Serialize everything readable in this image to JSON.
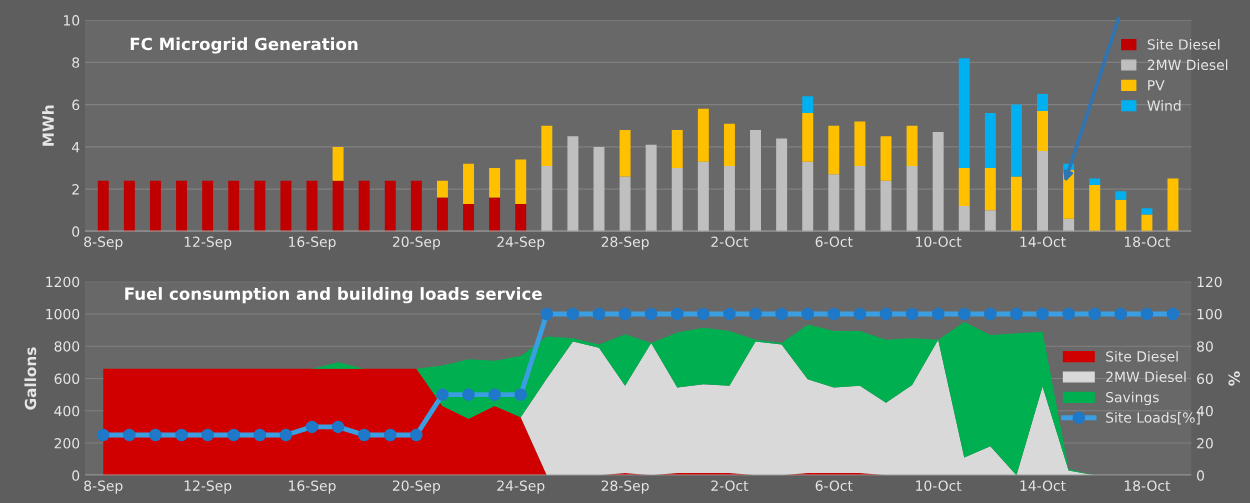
{
  "chart_data": [
    {
      "type": "bar",
      "title": "FC Microgrid Generation",
      "ylabel": "MWh",
      "stacked": true,
      "categories": [
        "8-Sep",
        null,
        null,
        null,
        "12-Sep",
        null,
        null,
        null,
        "16-Sep",
        null,
        null,
        null,
        "20-Sep",
        null,
        null,
        null,
        "24-Sep",
        null,
        null,
        null,
        "28-Sep",
        null,
        null,
        null,
        "2-Oct",
        null,
        null,
        null,
        "6-Oct",
        null,
        null,
        null,
        "10-Oct",
        null,
        null,
        null,
        "14-Oct",
        null,
        null,
        null,
        "18-Oct",
        null
      ],
      "series": [
        {
          "name": "Site Diesel",
          "color": "#c00000",
          "values": [
            2.4,
            2.4,
            2.4,
            2.4,
            2.4,
            2.4,
            2.4,
            2.4,
            2.4,
            2.4,
            2.4,
            2.4,
            2.4,
            1.6,
            1.3,
            1.6,
            1.3,
            null,
            null,
            null,
            null,
            null,
            null,
            null,
            null,
            null,
            null,
            null,
            null,
            null,
            null,
            null,
            null,
            null,
            null,
            null,
            null,
            null,
            null,
            null,
            null,
            null
          ]
        },
        {
          "name": "2MW Diesel",
          "color": "#bfbfbf",
          "values": [
            null,
            null,
            null,
            null,
            null,
            null,
            null,
            null,
            null,
            null,
            null,
            null,
            null,
            null,
            null,
            null,
            null,
            3.1,
            4.5,
            4.0,
            2.6,
            4.1,
            3.0,
            3.3,
            3.1,
            4.8,
            4.4,
            3.3,
            2.7,
            3.1,
            2.4,
            3.1,
            4.7,
            1.2,
            1.0,
            null,
            3.8,
            0.6,
            null,
            null,
            null,
            null
          ]
        },
        {
          "name": "PV",
          "color": "#ffc000",
          "values": [
            null,
            null,
            null,
            null,
            null,
            null,
            null,
            null,
            null,
            1.6,
            null,
            null,
            null,
            0.8,
            1.9,
            1.4,
            2.1,
            1.9,
            null,
            null,
            2.2,
            null,
            1.8,
            2.5,
            2.0,
            null,
            null,
            2.3,
            2.3,
            2.1,
            2.1,
            1.9,
            null,
            1.8,
            2.0,
            2.6,
            1.9,
            2.3,
            2.2,
            1.5,
            0.8,
            2.5
          ]
        },
        {
          "name": "Wind",
          "color": "#00b0f0",
          "values": [
            null,
            null,
            null,
            null,
            null,
            null,
            null,
            null,
            null,
            null,
            null,
            null,
            null,
            null,
            null,
            null,
            null,
            null,
            null,
            null,
            null,
            null,
            null,
            null,
            null,
            null,
            null,
            0.8,
            null,
            null,
            null,
            null,
            null,
            5.2,
            2.6,
            3.4,
            0.8,
            0.3,
            0.3,
            0.4,
            0.3,
            null
          ]
        }
      ],
      "ylim": [
        0,
        10
      ],
      "yticks": [
        0,
        2,
        4,
        6,
        8,
        10
      ],
      "grid": "y",
      "legend": "top right"
    },
    {
      "type": "area",
      "title": "Fuel consumption and building loads service",
      "ylabel": "Gallons",
      "y2label": "%",
      "stacked": true,
      "categories": [
        "8-Sep",
        null,
        null,
        null,
        "12-Sep",
        null,
        null,
        null,
        "16-Sep",
        null,
        null,
        null,
        "20-Sep",
        null,
        null,
        null,
        "24-Sep",
        null,
        null,
        null,
        "28-Sep",
        null,
        null,
        null,
        "2-Oct",
        null,
        null,
        null,
        "6-Oct",
        null,
        null,
        null,
        "10-Oct",
        null,
        null,
        null,
        "14-Oct",
        null,
        null,
        null,
        "18-Oct",
        null
      ],
      "series": [
        {
          "name": "Site Diesel",
          "color": "#d00000",
          "values": [
            660,
            660,
            660,
            660,
            660,
            660,
            660,
            660,
            660,
            660,
            660,
            660,
            660,
            430,
            350,
            430,
            360,
            0,
            0,
            0,
            15,
            0,
            15,
            15,
            15,
            0,
            0,
            15,
            15,
            15,
            0,
            0,
            0,
            0,
            0,
            0,
            0,
            0,
            0,
            0,
            0,
            0
          ]
        },
        {
          "name": "2MW Diesel",
          "color": "#d9d9d9",
          "values": [
            0,
            0,
            0,
            0,
            0,
            0,
            0,
            0,
            0,
            0,
            0,
            0,
            0,
            0,
            0,
            0,
            0,
            600,
            830,
            790,
            540,
            820,
            530,
            550,
            540,
            830,
            810,
            580,
            530,
            540,
            450,
            560,
            840,
            110,
            180,
            0,
            550,
            30,
            0,
            0,
            0,
            0
          ]
        },
        {
          "name": "Savings",
          "color": "#00b050",
          "values": [
            0,
            0,
            0,
            0,
            0,
            0,
            0,
            0,
            0,
            40,
            0,
            0,
            0,
            250,
            370,
            280,
            380,
            260,
            20,
            20,
            320,
            0,
            340,
            350,
            340,
            10,
            10,
            340,
            350,
            340,
            390,
            290,
            0,
            840,
            690,
            880,
            340,
            10,
            0,
            0,
            0,
            0
          ]
        },
        {
          "name": "Site Loads[%]",
          "type": "line",
          "axis": "y2",
          "color": "#3a9ee0",
          "marker": "circle",
          "values": [
            25,
            25,
            25,
            25,
            25,
            25,
            25,
            25,
            30,
            30,
            25,
            25,
            25,
            50,
            50,
            50,
            50,
            100,
            100,
            100,
            100,
            100,
            100,
            100,
            100,
            100,
            100,
            100,
            100,
            100,
            100,
            100,
            100,
            100,
            100,
            100,
            100,
            100,
            100,
            100,
            100,
            100
          ]
        }
      ],
      "ylim": [
        0,
        1200
      ],
      "yticks": [
        0,
        200,
        400,
        600,
        800,
        1000,
        1200
      ],
      "y2lim": [
        0,
        120
      ],
      "y2ticks": [
        0,
        20,
        40,
        60,
        80,
        100,
        120
      ],
      "grid": "y",
      "legend": "right"
    }
  ]
}
